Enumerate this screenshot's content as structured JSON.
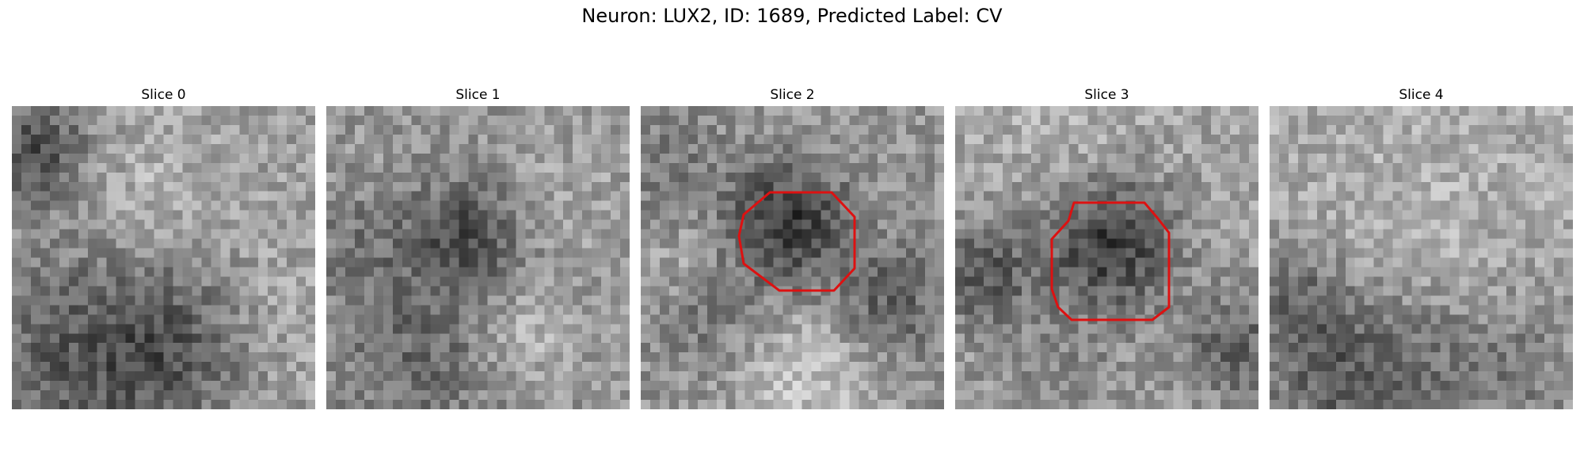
{
  "figure": {
    "title": "Neuron: LUX2, ID: 1689, Predicted Label: CV"
  },
  "slices": [
    {
      "label": "Slice 0",
      "has_outline": false
    },
    {
      "label": "Slice 1",
      "has_outline": false
    },
    {
      "label": "Slice 2",
      "has_outline": true
    },
    {
      "label": "Slice 3",
      "has_outline": true
    },
    {
      "label": "Slice 4",
      "has_outline": false
    }
  ],
  "colors": {
    "outline": "#dd1111",
    "background": "#ffffff"
  }
}
